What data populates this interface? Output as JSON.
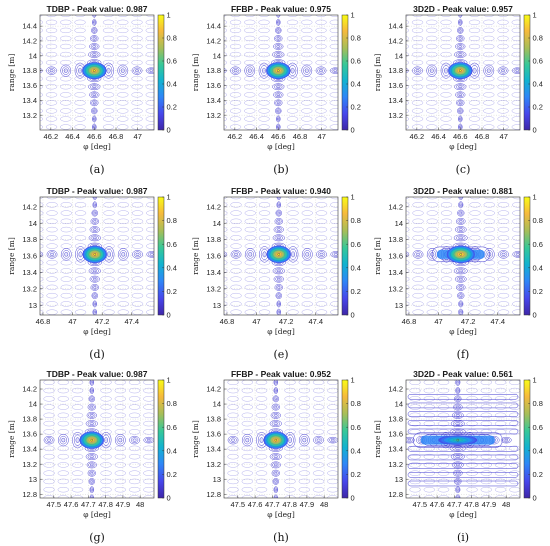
{
  "chart_data": [
    {
      "type": "heatmap",
      "panel": "(a)",
      "title": "TDBP - Peak value: 0.987",
      "peak": 0.987,
      "xlabel": "φ [deg]",
      "ylabel": "range [m]",
      "xlim": [
        46.1,
        47.15
      ],
      "ylim": [
        13.0,
        14.55
      ],
      "xticks": [
        "46.2",
        "46.4",
        "46.6",
        "46.8",
        "47"
      ],
      "xtick_vals": [
        46.2,
        46.4,
        46.6,
        46.8,
        47.0
      ],
      "yticks": [
        "14.4",
        "14.2",
        "14",
        "13.8",
        "13.6",
        "13.4",
        "13.2"
      ],
      "ytick_vals": [
        14.4,
        14.2,
        14.0,
        13.8,
        13.6,
        13.4,
        13.2
      ],
      "center": [
        46.6,
        13.8
      ],
      "clim": [
        0,
        1
      ],
      "colorbar_ticks": [
        "1",
        "0.8",
        "0.6",
        "0.4",
        "0.2",
        "0"
      ],
      "spread": 1.0
    },
    {
      "type": "heatmap",
      "panel": "(b)",
      "title": "FFBP - Peak value: 0.975",
      "peak": 0.975,
      "xlabel": "φ [deg]",
      "ylabel": "range [m]",
      "xlim": [
        46.1,
        47.15
      ],
      "ylim": [
        13.0,
        14.55
      ],
      "xticks": [
        "46.2",
        "46.4",
        "46.6",
        "46.8",
        "47"
      ],
      "xtick_vals": [
        46.2,
        46.4,
        46.6,
        46.8,
        47.0
      ],
      "yticks": [
        "14.4",
        "14.2",
        "14",
        "13.8",
        "13.6",
        "13.4",
        "13.2"
      ],
      "ytick_vals": [
        14.4,
        14.2,
        14.0,
        13.8,
        13.6,
        13.4,
        13.2
      ],
      "center": [
        46.6,
        13.8
      ],
      "clim": [
        0,
        1
      ],
      "colorbar_ticks": [
        "1",
        "0.8",
        "0.6",
        "0.4",
        "0.2",
        "0"
      ],
      "spread": 1.0
    },
    {
      "type": "heatmap",
      "panel": "(c)",
      "title": "3D2D - Peak value: 0.957",
      "peak": 0.957,
      "xlabel": "φ [deg]",
      "ylabel": "range [m]",
      "xlim": [
        46.1,
        47.15
      ],
      "ylim": [
        13.0,
        14.55
      ],
      "xticks": [
        "46.2",
        "46.4",
        "46.6",
        "46.8",
        "47"
      ],
      "xtick_vals": [
        46.2,
        46.4,
        46.6,
        46.8,
        47.0
      ],
      "yticks": [
        "14.4",
        "14.2",
        "14",
        "13.8",
        "13.6",
        "13.4",
        "13.2"
      ],
      "ytick_vals": [
        14.4,
        14.2,
        14.0,
        13.8,
        13.6,
        13.4,
        13.2
      ],
      "center": [
        46.6,
        13.8
      ],
      "clim": [
        0,
        1
      ],
      "colorbar_ticks": [
        "1",
        "0.8",
        "0.6",
        "0.4",
        "0.2",
        "0"
      ],
      "spread": 1.15
    },
    {
      "type": "heatmap",
      "panel": "(d)",
      "title": "TDBP - Peak value: 0.987",
      "peak": 0.987,
      "xlabel": "φ [deg]",
      "ylabel": "range [m]",
      "xlim": [
        46.78,
        47.55
      ],
      "ylim": [
        12.88,
        14.32
      ],
      "xticks": [
        "46.8",
        "47",
        "47.2",
        "47.4"
      ],
      "xtick_vals": [
        46.8,
        47.0,
        47.2,
        47.4
      ],
      "yticks": [
        "14.2",
        "14",
        "13.8",
        "13.6",
        "13.4",
        "13.2",
        "13"
      ],
      "ytick_vals": [
        14.2,
        14.0,
        13.8,
        13.6,
        13.4,
        13.2,
        13.0
      ],
      "center": [
        47.15,
        13.62
      ],
      "clim": [
        0,
        1
      ],
      "colorbar_ticks": [
        "1",
        "0.8",
        "0.6",
        "0.4",
        "0.2",
        "0"
      ],
      "spread": 1.0
    },
    {
      "type": "heatmap",
      "panel": "(e)",
      "title": "FFBP - Peak value: 0.940",
      "peak": 0.94,
      "xlabel": "φ [deg]",
      "ylabel": "range [m]",
      "xlim": [
        46.78,
        47.55
      ],
      "ylim": [
        12.88,
        14.32
      ],
      "xticks": [
        "46.8",
        "47",
        "47.2",
        "47.4"
      ],
      "xtick_vals": [
        46.8,
        47.0,
        47.2,
        47.4
      ],
      "yticks": [
        "14.2",
        "14",
        "13.8",
        "13.6",
        "13.4",
        "13.2",
        "13"
      ],
      "ytick_vals": [
        14.2,
        14.0,
        13.8,
        13.6,
        13.4,
        13.2,
        13.0
      ],
      "center": [
        47.15,
        13.62
      ],
      "clim": [
        0,
        1
      ],
      "colorbar_ticks": [
        "1",
        "0.8",
        "0.6",
        "0.4",
        "0.2",
        "0"
      ],
      "spread": 1.05
    },
    {
      "type": "heatmap",
      "panel": "(f)",
      "title": "3D2D - Peak value: 0.881",
      "peak": 0.881,
      "xlabel": "φ [deg]",
      "ylabel": "range [m]",
      "xlim": [
        46.78,
        47.55
      ],
      "ylim": [
        12.88,
        14.32
      ],
      "xticks": [
        "46.8",
        "47",
        "47.2",
        "47.4"
      ],
      "xtick_vals": [
        46.8,
        47.0,
        47.2,
        47.4
      ],
      "yticks": [
        "14.2",
        "14",
        "13.8",
        "13.6",
        "13.4",
        "13.2",
        "13"
      ],
      "ytick_vals": [
        14.2,
        14.0,
        13.8,
        13.6,
        13.4,
        13.2,
        13.0
      ],
      "center": [
        47.15,
        13.62
      ],
      "clim": [
        0,
        1
      ],
      "colorbar_ticks": [
        "1",
        "0.8",
        "0.6",
        "0.4",
        "0.2",
        "0"
      ],
      "spread": 1.5
    },
    {
      "type": "heatmap",
      "panel": "(g)",
      "title": "TDBP - Peak value: 0.987",
      "peak": 0.987,
      "xlabel": "φ [deg]",
      "ylabel": "range [m]",
      "xlim": [
        47.42,
        48.08
      ],
      "ylim": [
        12.75,
        14.32
      ],
      "xticks": [
        "47.5",
        "47.6",
        "47.7",
        "47.8",
        "47.9",
        "48"
      ],
      "xtick_vals": [
        47.5,
        47.6,
        47.7,
        47.8,
        47.9,
        48.0
      ],
      "yticks": [
        "14.2",
        "14",
        "13.8",
        "13.6",
        "13.4",
        "13.2",
        "13",
        "12.8"
      ],
      "ytick_vals": [
        14.2,
        14.0,
        13.8,
        13.6,
        13.4,
        13.2,
        13.0,
        12.8
      ],
      "center": [
        47.72,
        13.52
      ],
      "clim": [
        0,
        1
      ],
      "colorbar_ticks": [
        "1",
        "0.8",
        "0.6",
        "0.4",
        "0.2",
        "0"
      ],
      "spread": 1.0
    },
    {
      "type": "heatmap",
      "panel": "(h)",
      "title": "FFBP - Peak value: 0.952",
      "peak": 0.952,
      "xlabel": "φ [deg]",
      "ylabel": "range [m]",
      "xlim": [
        47.42,
        48.08
      ],
      "ylim": [
        12.75,
        14.32
      ],
      "xticks": [
        "47.5",
        "47.6",
        "47.7",
        "47.8",
        "47.9",
        "48"
      ],
      "xtick_vals": [
        47.5,
        47.6,
        47.7,
        47.8,
        47.9,
        48.0
      ],
      "yticks": [
        "14.2",
        "14",
        "13.8",
        "13.6",
        "13.4",
        "13.2",
        "13",
        "12.8"
      ],
      "ytick_vals": [
        14.2,
        14.0,
        13.8,
        13.6,
        13.4,
        13.2,
        13.0,
        12.8
      ],
      "center": [
        47.72,
        13.52
      ],
      "clim": [
        0,
        1
      ],
      "colorbar_ticks": [
        "1",
        "0.8",
        "0.6",
        "0.4",
        "0.2",
        "0"
      ],
      "spread": 1.05
    },
    {
      "type": "heatmap",
      "panel": "(i)",
      "title": "3D2D - Peak value: 0.561",
      "peak": 0.561,
      "xlabel": "φ [deg]",
      "ylabel": "range [m]",
      "xlim": [
        47.42,
        48.08
      ],
      "ylim": [
        12.75,
        14.32
      ],
      "xticks": [
        "47.5",
        "47.6",
        "47.7",
        "47.8",
        "47.9",
        "48"
      ],
      "xtick_vals": [
        47.5,
        47.6,
        47.7,
        47.8,
        47.9,
        48.0
      ],
      "yticks": [
        "14.2",
        "14",
        "13.8",
        "13.6",
        "13.4",
        "13.2",
        "13",
        "12.8"
      ],
      "ytick_vals": [
        14.2,
        14.0,
        13.8,
        13.6,
        13.4,
        13.2,
        13.0,
        12.8
      ],
      "center": [
        47.72,
        13.52
      ],
      "clim": [
        0,
        1
      ],
      "colorbar_ticks": [
        "1",
        "0.8",
        "0.6",
        "0.4",
        "0.2",
        "0"
      ],
      "spread": 2.6
    }
  ],
  "colormap": [
    "#3e26a8",
    "#4746eb",
    "#2e87f7",
    "#12b3d0",
    "#37c898",
    "#a5be59",
    "#f6ba3c",
    "#f9fb15"
  ],
  "contour_color": "#3e38d0"
}
